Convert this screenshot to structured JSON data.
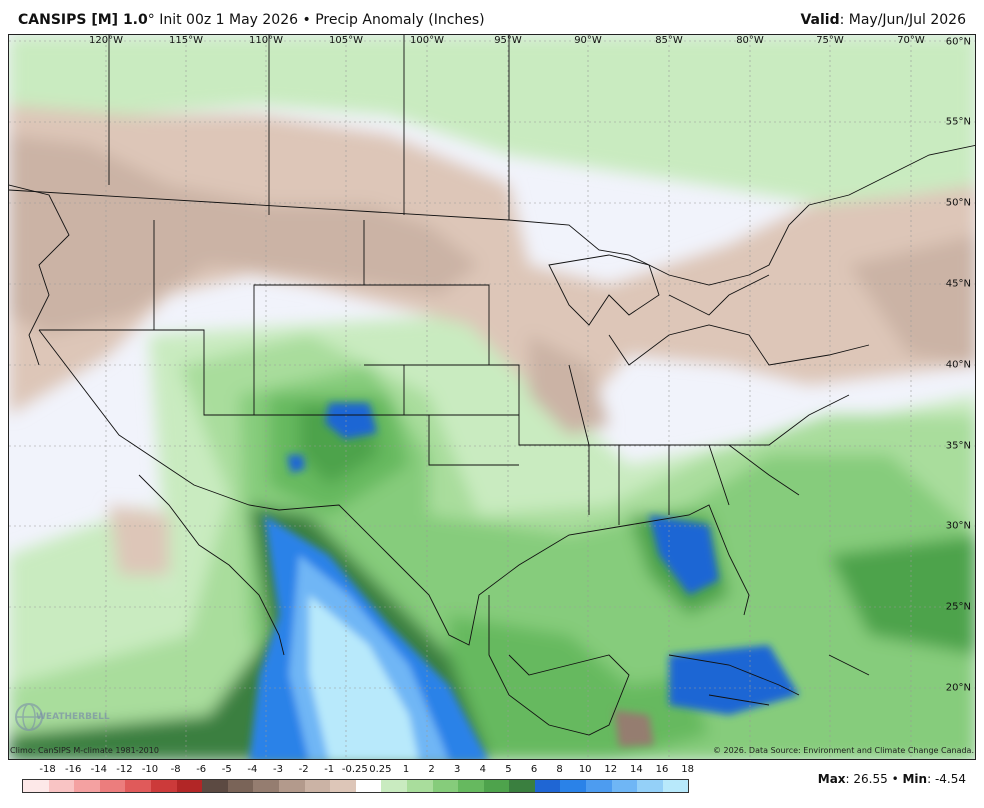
{
  "header": {
    "model": "CANSIPS [M] 1.0",
    "degree": "°",
    "init": "Init 00z 1 May 2026",
    "bullet": "•",
    "product": "Precip Anomaly (Inches)",
    "valid_label": "Valid",
    "valid_value": "May/Jun/Jul 2026"
  },
  "map": {
    "longitude_labels": [
      "120°W",
      "115°W",
      "110°W",
      "105°W",
      "100°W",
      "95°W",
      "90°W",
      "85°W",
      "80°W",
      "75°W",
      "70°W"
    ],
    "latitude_labels": [
      "60°N",
      "55°N",
      "50°N",
      "45°N",
      "40°N",
      "35°N",
      "30°N",
      "25°N",
      "20°N"
    ]
  },
  "footer": {
    "climo": "Climo: CanSIPS M-climate 1981-2010",
    "copyright": "© 2026. Data Source: Environment and Climate Change Canada.",
    "logo_text": "WEATHERBELL"
  },
  "legend": {
    "ticks": [
      "-18",
      "-16",
      "-14",
      "-12",
      "-10",
      "-8",
      "-6",
      "-5",
      "-4",
      "-3",
      "-2",
      "-1",
      "-0.25",
      "0.25",
      "1",
      "2",
      "3",
      "4",
      "5",
      "6",
      "8",
      "10",
      "12",
      "14",
      "16",
      "18"
    ],
    "colors": [
      "#fde8e8",
      "#f9c4c4",
      "#f4a1a1",
      "#ec7d7d",
      "#e05a5a",
      "#cc3a3a",
      "#b22626",
      "#5c4a42",
      "#7a6458",
      "#957d70",
      "#b39a8c",
      "#cbb3a5",
      "#ddc6b8",
      "#ffffff",
      "#c9ebc0",
      "#a9dd9c",
      "#86cc7b",
      "#66b95f",
      "#4ea34c",
      "#3a7f3f",
      "#1f66d4",
      "#2a82e8",
      "#4d9cf0",
      "#6fb6f5",
      "#94d0f8",
      "#b8e9fb"
    ]
  },
  "stats": {
    "max_label": "Max",
    "max_value": "26.55",
    "min_label": "Min",
    "min_value": "-4.54"
  }
}
